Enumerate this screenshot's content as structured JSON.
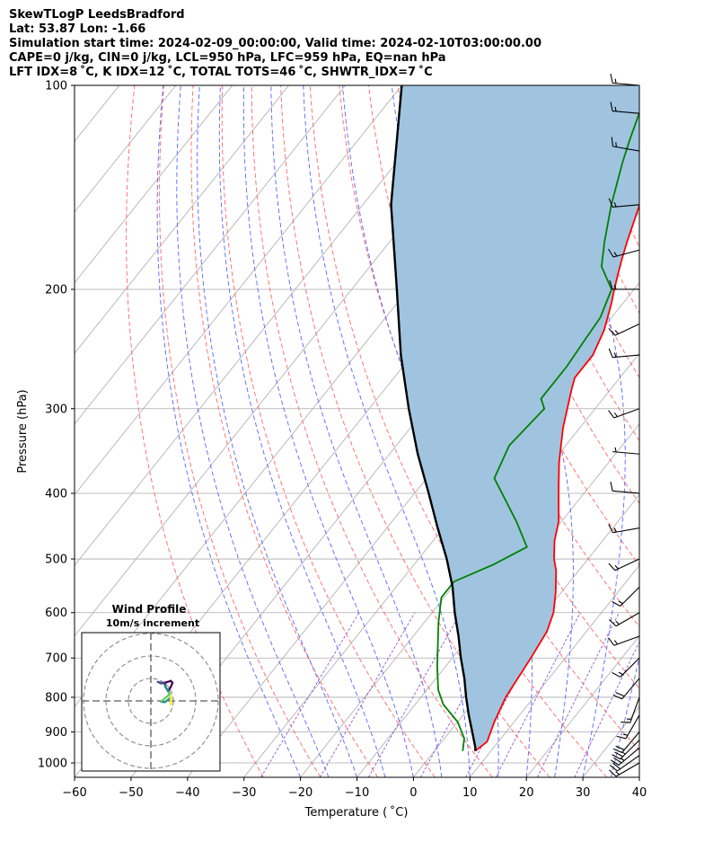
{
  "header": {
    "line1": "SkewTLogP LeedsBradford",
    "line2": "Lat: 53.87   Lon: -1.66",
    "line3": "Simulation start time: 2024-02-09_00:00:00, Valid time: 2024-02-10T03:00:00.00",
    "line4": "CAPE=0 j/kg, CIN=0 j/kg, LCL=950 hPa, LFC=959 hPa, EQ=nan hPa",
    "line5": "LFT IDX=8 ˚C, K IDX=12 ˚C, TOTAL TOTS=46 ˚C, SHWTR_IDX=7 ˚C"
  },
  "chart_data": {
    "type": "line",
    "xlabel": "Temperature ( ˚C)",
    "ylabel": "Pressure (hPa)",
    "xlim": [
      -60,
      40
    ],
    "ylim": [
      1050,
      100
    ],
    "y_scale": "log",
    "grid": true,
    "x_ticks": [
      "−60",
      "−50",
      "−40",
      "−30",
      "−20",
      "−10",
      "0",
      "10",
      "20",
      "30",
      "40"
    ],
    "y_ticks": [
      "100",
      "200",
      "300",
      "400",
      "500",
      "600",
      "700",
      "800",
      "900",
      "1000"
    ],
    "colors": {
      "temperature": "#ff0000",
      "dewpoint": "#008000",
      "parcel": "#000000",
      "shade": "#a0c4e0",
      "dry_adiabat": "#ff6666",
      "moist_adiabat": "#5566ff",
      "mixing_ratio": "#9955cc",
      "isotherm": "#aaaaaa"
    },
    "temperature": {
      "p": [
        960,
        930,
        910,
        870,
        800,
        700,
        640,
        600,
        560,
        520,
        500,
        470,
        440,
        400,
        360,
        320,
        280,
        270,
        250,
        230,
        210,
        200,
        190,
        180,
        170,
        150,
        130,
        120,
        110,
        100
      ],
      "t": [
        7.2,
        8.0,
        7.5,
        6.5,
        5.0,
        3.9,
        3.0,
        1.5,
        -1.0,
        -4.0,
        -6.0,
        -8.5,
        -10.5,
        -14.5,
        -18.8,
        -23.0,
        -27.0,
        -28.0,
        -28.0,
        -29.5,
        -32.0,
        -33.5,
        -35.0,
        -36.5,
        -38.0,
        -41.0,
        -45.0,
        -47.0,
        -49.5,
        -52.0
      ]
    },
    "dewpoint": {
      "p": [
        960,
        920,
        870,
        820,
        780,
        720,
        660,
        620,
        570,
        540,
        510,
        480,
        440,
        380,
        340,
        300,
        290,
        260,
        240,
        220,
        200,
        185,
        170,
        150,
        130,
        120,
        110,
        100
      ],
      "t": [
        5.0,
        3.5,
        0.0,
        -5.0,
        -8.0,
        -11.5,
        -15.0,
        -17.5,
        -20.5,
        -20.5,
        -16.0,
        -12.5,
        -18.0,
        -28.0,
        -30.0,
        -29.0,
        -31.0,
        -31.0,
        -31.5,
        -32.0,
        -34.0,
        -39.0,
        -42.0,
        -46.0,
        -50.0,
        -52.0,
        -54.0,
        -56.0
      ]
    },
    "parcel": {
      "p": [
        960,
        950,
        900,
        850,
        800,
        750,
        700,
        650,
        600,
        550,
        500,
        450,
        400,
        350,
        300,
        250,
        200,
        150,
        100
      ],
      "t": [
        7.2,
        6.8,
        4.0,
        1.0,
        -2.0,
        -5.0,
        -8.5,
        -12.0,
        -16.0,
        -20.0,
        -25.0,
        -31.0,
        -37.5,
        -45.0,
        -53.0,
        -62.0,
        -72.0,
        -85.0,
        -100.0
      ]
    },
    "wind_barbs": {
      "p": [
        1000,
        975,
        950,
        925,
        900,
        850,
        800,
        750,
        700,
        650,
        600,
        550,
        500,
        450,
        400,
        350,
        300,
        250,
        225,
        200,
        175,
        150,
        125,
        110,
        100
      ],
      "speed_ms": [
        10,
        12,
        14,
        14,
        12,
        10,
        10,
        11,
        10,
        10,
        10,
        10,
        10,
        10,
        7,
        5,
        10,
        10,
        10,
        10,
        10,
        10,
        10,
        10,
        10
      ],
      "dir_deg": [
        240,
        235,
        230,
        225,
        220,
        210,
        200,
        220,
        225,
        250,
        240,
        225,
        245,
        260,
        275,
        275,
        250,
        265,
        245,
        270,
        255,
        265,
        280,
        275,
        275
      ]
    },
    "inset": {
      "title": "Wind Profile",
      "subtitle": "10m/s increment",
      "rings_ms": [
        10,
        20,
        30
      ]
    }
  }
}
